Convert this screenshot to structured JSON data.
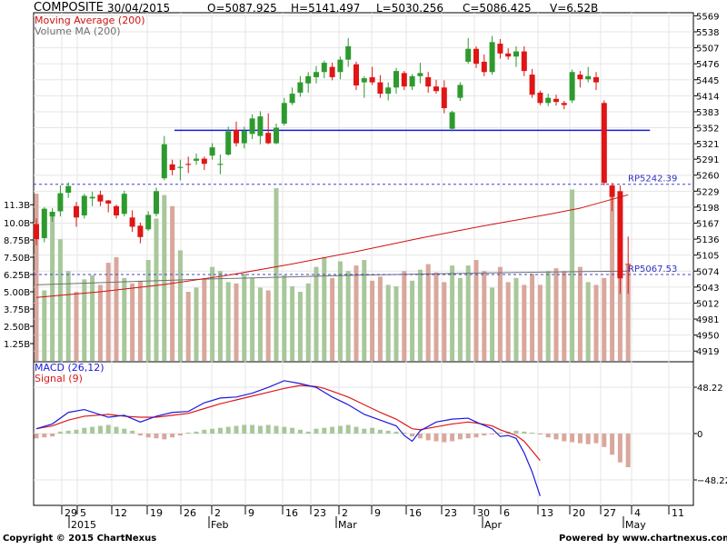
{
  "header": {
    "symbol": "COMPOSITE",
    "date": "30/04/2015",
    "open": "O=5087.925",
    "high": "H=5141.497",
    "low": "L=5030.256",
    "close": "C=5086.425",
    "volume": "V=6.52B"
  },
  "legend": {
    "ma": "Moving Average (200)",
    "vol_ma": "Volume MA (200)",
    "macd": "MACD (26,12)",
    "signal": "Signal (9)"
  },
  "footer": {
    "copyright": "Copyright © 2015 ChartNexus",
    "powered": "Powered by www.chartnexus.com"
  },
  "colors": {
    "up": "#2e9a2e",
    "down": "#e01515",
    "vol_up": "#a8c79a",
    "vol_down": "#d9a79c",
    "ma": "#d01010",
    "macd": "#1a1adc",
    "signal": "#dc1a1a",
    "support": "#1a1adc"
  },
  "chart_data": [
    {
      "type": "candlestick",
      "name": "price",
      "ylim": [
        4900,
        5575
      ],
      "y_ticks": [
        "5569",
        "5538",
        "5507",
        "5476",
        "5445",
        "5414",
        "5383",
        "5352",
        "5321",
        "5291",
        "5260",
        "5229",
        "5198",
        "5167",
        "5136",
        "5105",
        "5074",
        "5043",
        "5012",
        "4981",
        "4950",
        "4919"
      ],
      "x_ticks": [
        "29",
        "5",
        "12",
        "19",
        "26",
        "2",
        "9",
        "16",
        "23",
        "2",
        "9",
        "16",
        "23",
        "30",
        "6",
        "13",
        "20",
        "27",
        "4",
        "11"
      ],
      "month_labels": [
        "2015",
        "Feb",
        "Mar",
        "Apr",
        "May"
      ],
      "reference_lines": [
        {
          "label": "RP5242.39",
          "value": 5242.39
        },
        {
          "label": "RP5067.53",
          "value": 5067.53
        }
      ],
      "support_line": {
        "value": 5347,
        "from_index": 15,
        "to_index": 54
      },
      "ohlc": [
        [
          5165,
          5176,
          5124,
          5136
        ],
        [
          5138,
          5198,
          5130,
          5195
        ],
        [
          5180,
          5196,
          5170,
          5189
        ],
        [
          5190,
          5240,
          5180,
          5225
        ],
        [
          5226,
          5246,
          5216,
          5239
        ],
        [
          5200,
          5208,
          5160,
          5178
        ],
        [
          5182,
          5224,
          5176,
          5220
        ],
        [
          5215,
          5228,
          5200,
          5218
        ],
        [
          5222,
          5230,
          5200,
          5209
        ],
        [
          5211,
          5212,
          5188,
          5205
        ],
        [
          5200,
          5203,
          5176,
          5182
        ],
        [
          5185,
          5230,
          5180,
          5224
        ],
        [
          5178,
          5192,
          5150,
          5160
        ],
        [
          5162,
          5168,
          5128,
          5140
        ],
        [
          5155,
          5190,
          5152,
          5183
        ],
        [
          5185,
          5236,
          5180,
          5229
        ],
        [
          5254,
          5336,
          5250,
          5320
        ],
        [
          5281,
          5290,
          5260,
          5270
        ],
        [
          5274,
          5290,
          5250,
          5276
        ],
        [
          5282,
          5296,
          5264,
          5280
        ],
        [
          5288,
          5302,
          5280,
          5292
        ],
        [
          5292,
          5296,
          5270,
          5282
        ],
        [
          5298,
          5322,
          5290,
          5314
        ],
        [
          5280,
          5300,
          5262,
          5282
        ],
        [
          5300,
          5354,
          5298,
          5345
        ],
        [
          5348,
          5364,
          5316,
          5322
        ],
        [
          5322,
          5354,
          5312,
          5346
        ],
        [
          5340,
          5378,
          5330,
          5370
        ],
        [
          5336,
          5384,
          5320,
          5374
        ],
        [
          5342,
          5380,
          5320,
          5322
        ],
        [
          5322,
          5360,
          5320,
          5352
        ],
        [
          5360,
          5410,
          5356,
          5400
        ],
        [
          5400,
          5430,
          5396,
          5418
        ],
        [
          5420,
          5452,
          5412,
          5440
        ],
        [
          5438,
          5460,
          5420,
          5452
        ],
        [
          5450,
          5472,
          5438,
          5460
        ],
        [
          5460,
          5482,
          5448,
          5478
        ],
        [
          5470,
          5478,
          5444,
          5450
        ],
        [
          5460,
          5490,
          5446,
          5484
        ],
        [
          5484,
          5526,
          5470,
          5510
        ],
        [
          5475,
          5480,
          5425,
          5434
        ],
        [
          5440,
          5452,
          5410,
          5448
        ],
        [
          5450,
          5470,
          5435,
          5440
        ],
        [
          5440,
          5454,
          5410,
          5418
        ],
        [
          5418,
          5440,
          5405,
          5430
        ],
        [
          5430,
          5468,
          5418,
          5462
        ],
        [
          5458,
          5462,
          5425,
          5432
        ],
        [
          5432,
          5456,
          5425,
          5452
        ],
        [
          5452,
          5478,
          5438,
          5458
        ],
        [
          5450,
          5460,
          5420,
          5432
        ],
        [
          5432,
          5445,
          5418,
          5423
        ],
        [
          5430,
          5444,
          5380,
          5390
        ],
        [
          5350,
          5385,
          5345,
          5382
        ],
        [
          5410,
          5440,
          5404,
          5435
        ],
        [
          5480,
          5526,
          5476,
          5505
        ],
        [
          5505,
          5510,
          5468,
          5476
        ],
        [
          5480,
          5494,
          5452,
          5460
        ],
        [
          5460,
          5530,
          5455,
          5518
        ],
        [
          5515,
          5524,
          5486,
          5496
        ],
        [
          5496,
          5506,
          5484,
          5490
        ],
        [
          5490,
          5510,
          5470,
          5500
        ],
        [
          5500,
          5510,
          5452,
          5462
        ],
        [
          5455,
          5466,
          5410,
          5416
        ],
        [
          5420,
          5424,
          5396,
          5400
        ],
        [
          5400,
          5418,
          5394,
          5410
        ],
        [
          5408,
          5416,
          5395,
          5402
        ],
        [
          5400,
          5404,
          5388,
          5396
        ],
        [
          5405,
          5465,
          5400,
          5460
        ],
        [
          5455,
          5462,
          5430,
          5446
        ],
        [
          5446,
          5470,
          5440,
          5452
        ],
        [
          5450,
          5460,
          5425,
          5440
        ],
        [
          5400,
          5405,
          5240,
          5245
        ],
        [
          5240,
          5245,
          5190,
          5218
        ],
        [
          5229,
          5240,
          5030,
          5060
        ],
        [
          5088,
          5141,
          5030,
          5086
        ]
      ],
      "moving_average": [
        [
          0,
          5023
        ],
        [
          8,
          5034
        ],
        [
          16,
          5048
        ],
        [
          24,
          5066
        ],
        [
          32,
          5088
        ],
        [
          40,
          5112
        ],
        [
          48,
          5138
        ],
        [
          56,
          5162
        ],
        [
          64,
          5184
        ],
        [
          68,
          5196
        ],
        [
          74,
          5222
        ]
      ]
    },
    {
      "type": "bar",
      "name": "volume",
      "y_ticks": [
        "11.3B",
        "10.0B",
        "8.75B",
        "7.50B",
        "6.25B",
        "5.00B",
        "3.75B",
        "2.50B",
        "1.25B"
      ],
      "ylim": [
        0,
        12.5
      ],
      "values": [
        12.1,
        5.1,
        10.5,
        8.8,
        6.5,
        5.0,
        5.9,
        6.2,
        5.5,
        7.1,
        7.5,
        6.0,
        5.6,
        5.8,
        7.3,
        10.3,
        12.0,
        11.2,
        8.0,
        5.0,
        5.3,
        6.0,
        6.8,
        6.5,
        5.7,
        5.6,
        6.3,
        6.0,
        5.3,
        5.1,
        12.5,
        6.2,
        5.4,
        5.0,
        5.6,
        6.8,
        7.5,
        6.0,
        7.2,
        6.5,
        6.9,
        7.3,
        5.8,
        6.1,
        5.5,
        5.4,
        6.5,
        5.8,
        6.6,
        7.0,
        6.4,
        5.7,
        6.9,
        6.0,
        6.9,
        7.3,
        6.5,
        5.3,
        6.8,
        5.7,
        6.0,
        5.5,
        6.3,
        5.5,
        6.5,
        6.7,
        6.5,
        12.4,
        6.8,
        5.7,
        5.5,
        6.0,
        12.2,
        7.8,
        6.9
      ],
      "volume_ma": [
        [
          0,
          5.5
        ],
        [
          20,
          5.9
        ],
        [
          40,
          6.2
        ],
        [
          60,
          6.4
        ],
        [
          74,
          6.5
        ]
      ]
    },
    {
      "type": "line",
      "name": "macd",
      "y_ticks": [
        "48.22",
        "0",
        "-48.22"
      ],
      "ylim": [
        -72,
        72
      ],
      "macd": [
        [
          0,
          5
        ],
        [
          4,
          10
        ],
        [
          8,
          22
        ],
        [
          12,
          25
        ],
        [
          18,
          17
        ],
        [
          22,
          19
        ],
        [
          26,
          12
        ],
        [
          30,
          18
        ],
        [
          34,
          22
        ],
        [
          38,
          23
        ],
        [
          42,
          32
        ],
        [
          46,
          37
        ],
        [
          50,
          38
        ],
        [
          54,
          42
        ],
        [
          58,
          48
        ],
        [
          62,
          55
        ],
        [
          66,
          52
        ],
        [
          70,
          48
        ],
        [
          72,
          43
        ],
        [
          74,
          38
        ],
        [
          78,
          30
        ],
        [
          82,
          20
        ],
        [
          86,
          14
        ],
        [
          90,
          8
        ],
        [
          92,
          -2
        ],
        [
          94,
          -8
        ],
        [
          96,
          3
        ],
        [
          100,
          12
        ],
        [
          104,
          15
        ],
        [
          108,
          16
        ],
        [
          110,
          12
        ],
        [
          114,
          5
        ],
        [
          116,
          -3
        ],
        [
          118,
          -2
        ],
        [
          120,
          -5
        ],
        [
          122,
          -20
        ],
        [
          124,
          -40
        ],
        [
          126,
          -65
        ]
      ],
      "signal": [
        [
          0,
          5
        ],
        [
          4,
          8
        ],
        [
          8,
          14
        ],
        [
          12,
          18
        ],
        [
          18,
          20
        ],
        [
          22,
          18
        ],
        [
          26,
          17
        ],
        [
          30,
          17
        ],
        [
          34,
          19
        ],
        [
          38,
          21
        ],
        [
          42,
          26
        ],
        [
          46,
          31
        ],
        [
          50,
          35
        ],
        [
          54,
          39
        ],
        [
          58,
          43
        ],
        [
          62,
          47
        ],
        [
          66,
          50
        ],
        [
          70,
          49
        ],
        [
          72,
          47
        ],
        [
          74,
          44
        ],
        [
          78,
          38
        ],
        [
          82,
          30
        ],
        [
          86,
          22
        ],
        [
          90,
          15
        ],
        [
          92,
          10
        ],
        [
          94,
          5
        ],
        [
          96,
          4
        ],
        [
          100,
          7
        ],
        [
          104,
          10
        ],
        [
          108,
          12
        ],
        [
          110,
          11
        ],
        [
          114,
          8
        ],
        [
          116,
          4
        ],
        [
          118,
          1
        ],
        [
          120,
          -2
        ],
        [
          122,
          -8
        ],
        [
          124,
          -18
        ],
        [
          126,
          -28
        ]
      ],
      "histogram": [
        -5,
        -4,
        -3,
        2,
        3,
        4,
        6,
        7,
        8,
        9,
        7,
        5,
        3,
        -2,
        -4,
        -5,
        -6,
        -4,
        -2,
        1,
        2,
        4,
        5,
        6,
        7,
        8,
        9,
        9,
        8,
        9,
        8,
        7,
        6,
        4,
        2,
        5,
        6,
        7,
        8,
        9,
        7,
        5,
        6,
        4,
        3,
        2,
        1,
        -3,
        -5,
        -7,
        -8,
        -9,
        -8,
        -6,
        -5,
        -4,
        -2,
        -1,
        1,
        2,
        3,
        2,
        1,
        -1,
        -4,
        -6,
        -8,
        -9,
        -10,
        -11,
        -10,
        -14,
        -22,
        -30,
        -35
      ]
    }
  ]
}
